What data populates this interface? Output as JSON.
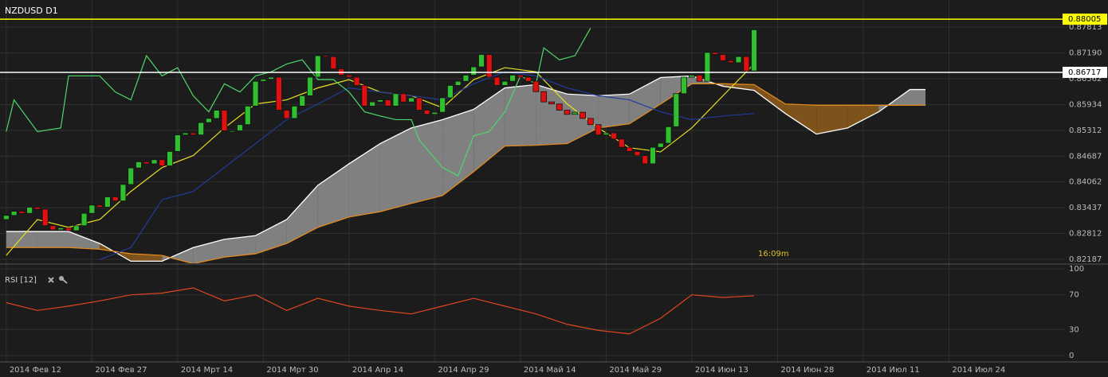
{
  "chart_data": [
    {
      "type": "candlestick",
      "title": "NZDUSD D1",
      "annotation": "16:09m",
      "xlim": [
        -0.8,
        135.9
      ],
      "ylim": [
        0.8209,
        0.8847
      ],
      "yticks": [
        0.82187,
        0.82812,
        0.83437,
        0.84062,
        0.84687,
        0.85312,
        0.85934,
        0.86562,
        {
          "value": 0.8719,
          "label": "0.87190"
        },
        0.87813
      ],
      "grid": true,
      "up_color": "#2fbf2f",
      "down_color": "#e01010",
      "open": [
        0.8315,
        0.8325,
        0.8335,
        0.833,
        0.8345,
        0.834,
        0.83,
        0.829,
        0.8295,
        0.8288,
        0.83,
        0.833,
        0.835,
        0.8345,
        0.837,
        0.836,
        0.84,
        0.844,
        0.8455,
        0.845,
        0.846,
        0.8445,
        0.848,
        0.852,
        0.8525,
        0.852,
        0.855,
        0.856,
        0.858,
        0.853,
        0.853,
        0.8545,
        0.859,
        0.865,
        0.8655,
        0.866,
        0.858,
        0.856,
        0.859,
        0.8615,
        0.866,
        0.8712,
        0.871,
        0.868,
        0.8665,
        0.866,
        0.864,
        0.859,
        0.86,
        0.8605,
        0.859,
        0.862,
        0.86,
        0.861,
        0.858,
        0.857,
        0.8575,
        0.861,
        0.864,
        0.865,
        0.8665,
        0.8685,
        0.8715,
        0.866,
        0.864,
        0.865,
        0.8665,
        0.866,
        0.865,
        0.8625,
        0.86,
        0.8595,
        0.858,
        0.857,
        0.8575,
        0.856,
        0.8545,
        0.852,
        0.8525,
        0.851,
        0.849,
        0.848,
        0.847,
        0.845,
        0.849,
        0.85,
        0.854,
        0.862,
        0.866,
        0.8665,
        0.865,
        0.872,
        0.8715,
        0.87,
        0.8695,
        0.871,
        0.8675
      ],
      "close": [
        0.8325,
        0.8335,
        0.833,
        0.8345,
        0.834,
        0.83,
        0.829,
        0.8295,
        0.8288,
        0.83,
        0.833,
        0.835,
        0.8345,
        0.837,
        0.836,
        0.84,
        0.844,
        0.8455,
        0.845,
        0.846,
        0.8445,
        0.848,
        0.852,
        0.8525,
        0.852,
        0.855,
        0.856,
        0.858,
        0.853,
        0.853,
        0.8545,
        0.859,
        0.865,
        0.8655,
        0.866,
        0.858,
        0.856,
        0.859,
        0.8615,
        0.866,
        0.8712,
        0.871,
        0.868,
        0.8665,
        0.866,
        0.864,
        0.859,
        0.86,
        0.8605,
        0.859,
        0.862,
        0.86,
        0.861,
        0.858,
        0.857,
        0.8575,
        0.861,
        0.864,
        0.865,
        0.8665,
        0.8685,
        0.8715,
        0.866,
        0.864,
        0.865,
        0.8665,
        0.866,
        0.865,
        0.8625,
        0.86,
        0.8595,
        0.858,
        0.857,
        0.8575,
        0.856,
        0.8545,
        0.852,
        0.8525,
        0.851,
        0.849,
        0.848,
        0.847,
        0.845,
        0.849,
        0.85,
        0.854,
        0.862,
        0.866,
        0.8665,
        0.865,
        0.872,
        0.8715,
        0.87,
        0.8695,
        0.871,
        0.8675,
        0.8775
      ],
      "cloud": {
        "up_color": "#8c8c8c",
        "down_color": "#8a5a1c",
        "a_color": "#ffffff",
        "b_color": "#e08a1e",
        "x": [
          0,
          4,
          8,
          12,
          16,
          20,
          24,
          28,
          32,
          36,
          40,
          44,
          48,
          52,
          56,
          60,
          64,
          68,
          72,
          76,
          80,
          84,
          88,
          92,
          96,
          100,
          104,
          108,
          112,
          116,
          118
        ],
        "span_a": [
          0.8286,
          0.8286,
          0.8286,
          0.8257,
          0.8214,
          0.8214,
          0.8247,
          0.8267,
          0.8276,
          0.8315,
          0.8398,
          0.845,
          0.8499,
          0.8537,
          0.8557,
          0.8582,
          0.8634,
          0.8642,
          0.8619,
          0.8615,
          0.8619,
          0.8659,
          0.8663,
          0.8638,
          0.8628,
          0.8572,
          0.8522,
          0.8537,
          0.8576,
          0.863,
          0.863
        ],
        "span_b": [
          0.8247,
          0.8247,
          0.8247,
          0.8243,
          0.8232,
          0.8228,
          0.8208,
          0.8224,
          0.8232,
          0.8257,
          0.8296,
          0.8321,
          0.8334,
          0.8354,
          0.8373,
          0.8431,
          0.8493,
          0.8495,
          0.8499,
          0.8537,
          0.8547,
          0.8595,
          0.8644,
          0.8644,
          0.8642,
          0.8595,
          0.8592,
          0.8592,
          0.8592,
          0.8592,
          0.8592
        ]
      },
      "lines": [
        {
          "color": "#e8e020",
          "x": [
            0,
            4,
            8,
            12,
            16,
            20,
            24,
            28,
            32,
            36,
            40,
            44,
            48,
            52,
            56,
            60,
            64,
            68,
            72,
            76,
            80,
            84,
            88,
            92,
            96
          ],
          "values": [
            0.8228,
            0.8315,
            0.8296,
            0.8315,
            0.8383,
            0.8441,
            0.847,
            0.8537,
            0.8595,
            0.8605,
            0.8634,
            0.8654,
            0.8624,
            0.8615,
            0.8586,
            0.8654,
            0.8683,
            0.8673,
            0.8595,
            0.8537,
            0.8489,
            0.8479,
            0.8537,
            0.8615,
            0.8692
          ]
        },
        {
          "color": "#203c9c",
          "x": [
            12,
            16,
            20,
            24,
            28,
            32,
            36,
            40,
            44,
            48,
            52,
            56,
            60,
            64,
            68,
            72,
            76,
            80,
            84,
            88,
            92,
            96
          ],
          "values": [
            0.8218,
            0.8247,
            0.8363,
            0.8383,
            0.8441,
            0.8499,
            0.8557,
            0.8595,
            0.8634,
            0.8624,
            0.8615,
            0.8605,
            0.8644,
            0.8673,
            0.8663,
            0.8634,
            0.8615,
            0.8605,
            0.8576,
            0.8557,
            0.8566,
            0.8572
          ]
        },
        {
          "color": "#4cd86a",
          "x": [
            0,
            1,
            4,
            7,
            8,
            12,
            14,
            16,
            18,
            20,
            22,
            24,
            26,
            28,
            30,
            32,
            34,
            36,
            38,
            40,
            42,
            44,
            46,
            48,
            50,
            52,
            53,
            56,
            58,
            60,
            62,
            64,
            66,
            68,
            69,
            71,
            73,
            75
          ],
          "values": [
            0.8528,
            0.8605,
            0.8528,
            0.8537,
            0.8663,
            0.8663,
            0.8624,
            0.8605,
            0.8712,
            0.8663,
            0.8683,
            0.8615,
            0.8576,
            0.8644,
            0.8624,
            0.8663,
            0.8673,
            0.8692,
            0.8702,
            0.8654,
            0.8654,
            0.8624,
            0.8576,
            0.8566,
            0.8557,
            0.8557,
            0.8508,
            0.8441,
            0.8421,
            0.8518,
            0.8528,
            0.8576,
            0.8663,
            0.8644,
            0.8731,
            0.8702,
            0.8712,
            0.8779
          ]
        }
      ],
      "levels": [
        {
          "value": 0.88005,
          "color": "#ffff00"
        },
        {
          "value": 0.86717,
          "color": "#ffffff"
        }
      ]
    },
    {
      "type": "line",
      "title": "RSI [12]",
      "color": "#e0461e",
      "xlim": [
        -0.8,
        135.9
      ],
      "xticks": [
        {
          "value": 0,
          "label": "2014 Фев 12"
        },
        {
          "value": 11,
          "label": "2014 Фев 27"
        },
        {
          "value": 22,
          "label": "2014 Мрт 14"
        },
        {
          "value": 33,
          "label": "2014 Мрт 30"
        },
        {
          "value": 44,
          "label": "2014 Апр 14"
        },
        {
          "value": 55,
          "label": "2014 Апр 29"
        },
        {
          "value": 66,
          "label": "2014 Май 14"
        },
        {
          "value": 77,
          "label": "2014 Май 29"
        },
        {
          "value": 88,
          "label": "2014 Июн 13"
        },
        {
          "value": 99,
          "label": "2014 Июн 28"
        },
        {
          "value": 110,
          "label": "2014 Июл 11"
        },
        {
          "value": 121,
          "label": "2014 Июл 24"
        }
      ],
      "ylim": [
        0,
        100
      ],
      "yticks": [
        0,
        30,
        70,
        100
      ],
      "x": [
        0,
        4,
        8,
        12,
        16,
        20,
        24,
        28,
        32,
        36,
        40,
        44,
        48,
        52,
        56,
        60,
        64,
        68,
        72,
        76,
        80,
        84,
        88,
        92,
        96
      ],
      "values": [
        61,
        52,
        57,
        63,
        70,
        72,
        78,
        63,
        70,
        52,
        66,
        57,
        52,
        48,
        57,
        66,
        57,
        48,
        36,
        29,
        25,
        43,
        70,
        67,
        69
      ]
    }
  ]
}
